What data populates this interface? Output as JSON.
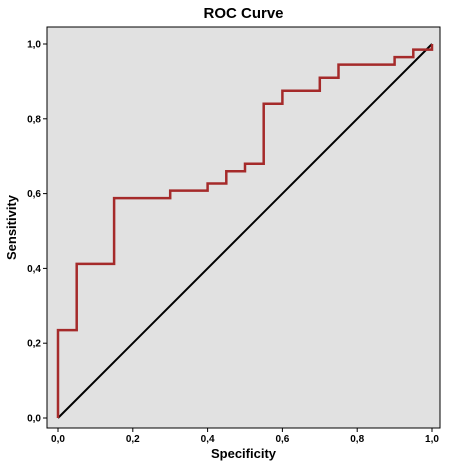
{
  "chart_data": {
    "type": "line",
    "title": "ROC Curve",
    "xlabel": "Specificity",
    "ylabel": "Sensitivity",
    "xlim": [
      0,
      1
    ],
    "ylim": [
      0,
      1
    ],
    "x_ticks": [
      "0,0",
      "0,2",
      "0,4",
      "0,6",
      "0,8",
      "1,0"
    ],
    "y_ticks": [
      "0,0",
      "0,2",
      "0,4",
      "0,6",
      "0,8",
      "1,0"
    ],
    "grid": false,
    "legend": "none",
    "colors": {
      "plot_background": "#e1e1e1",
      "roc_line": "#a52a2a",
      "reference_line": "#000000"
    },
    "series": [
      {
        "style": "step",
        "color": "#a52a2a",
        "points": [
          [
            0.0,
            0.0
          ],
          [
            0.0,
            0.235
          ],
          [
            0.05,
            0.235
          ],
          [
            0.05,
            0.412
          ],
          [
            0.15,
            0.412
          ],
          [
            0.15,
            0.588
          ],
          [
            0.3,
            0.588
          ],
          [
            0.3,
            0.608
          ],
          [
            0.4,
            0.608
          ],
          [
            0.4,
            0.627
          ],
          [
            0.45,
            0.627
          ],
          [
            0.45,
            0.66
          ],
          [
            0.5,
            0.66
          ],
          [
            0.5,
            0.68
          ],
          [
            0.55,
            0.68
          ],
          [
            0.55,
            0.84
          ],
          [
            0.6,
            0.84
          ],
          [
            0.6,
            0.875
          ],
          [
            0.7,
            0.875
          ],
          [
            0.7,
            0.91
          ],
          [
            0.75,
            0.91
          ],
          [
            0.75,
            0.945
          ],
          [
            0.9,
            0.945
          ],
          [
            0.9,
            0.965
          ],
          [
            0.95,
            0.965
          ],
          [
            0.95,
            0.985
          ],
          [
            1.0,
            0.985
          ],
          [
            1.0,
            1.0
          ]
        ]
      },
      {
        "style": "line",
        "color": "#000000",
        "points": [
          [
            0.0,
            0.0
          ],
          [
            1.0,
            1.0
          ]
        ]
      }
    ]
  }
}
